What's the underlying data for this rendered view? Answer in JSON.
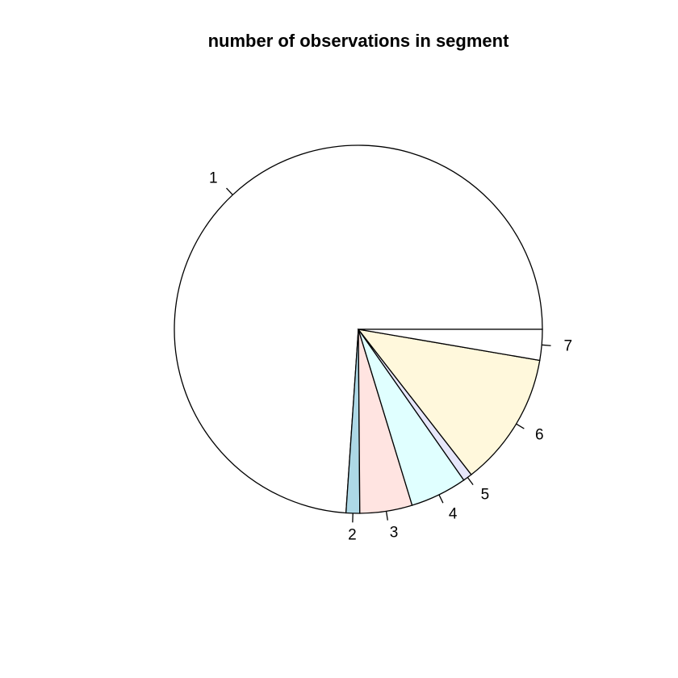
{
  "chart_data": {
    "type": "pie",
    "title": "number of observations in segment",
    "labels": [
      "1",
      "2",
      "3",
      "4",
      "5",
      "6",
      "7"
    ],
    "values": [
      74.0,
      1.2,
      4.6,
      5.0,
      0.8,
      11.8,
      2.7
    ],
    "colors": [
      "#FFFFFF",
      "#ADD8E6",
      "#FFE4E1",
      "#E0FFFF",
      "#E6E6FA",
      "#FFF8DC",
      "#FFFFFF"
    ],
    "direction": "counter-clockwise",
    "start": "right"
  }
}
